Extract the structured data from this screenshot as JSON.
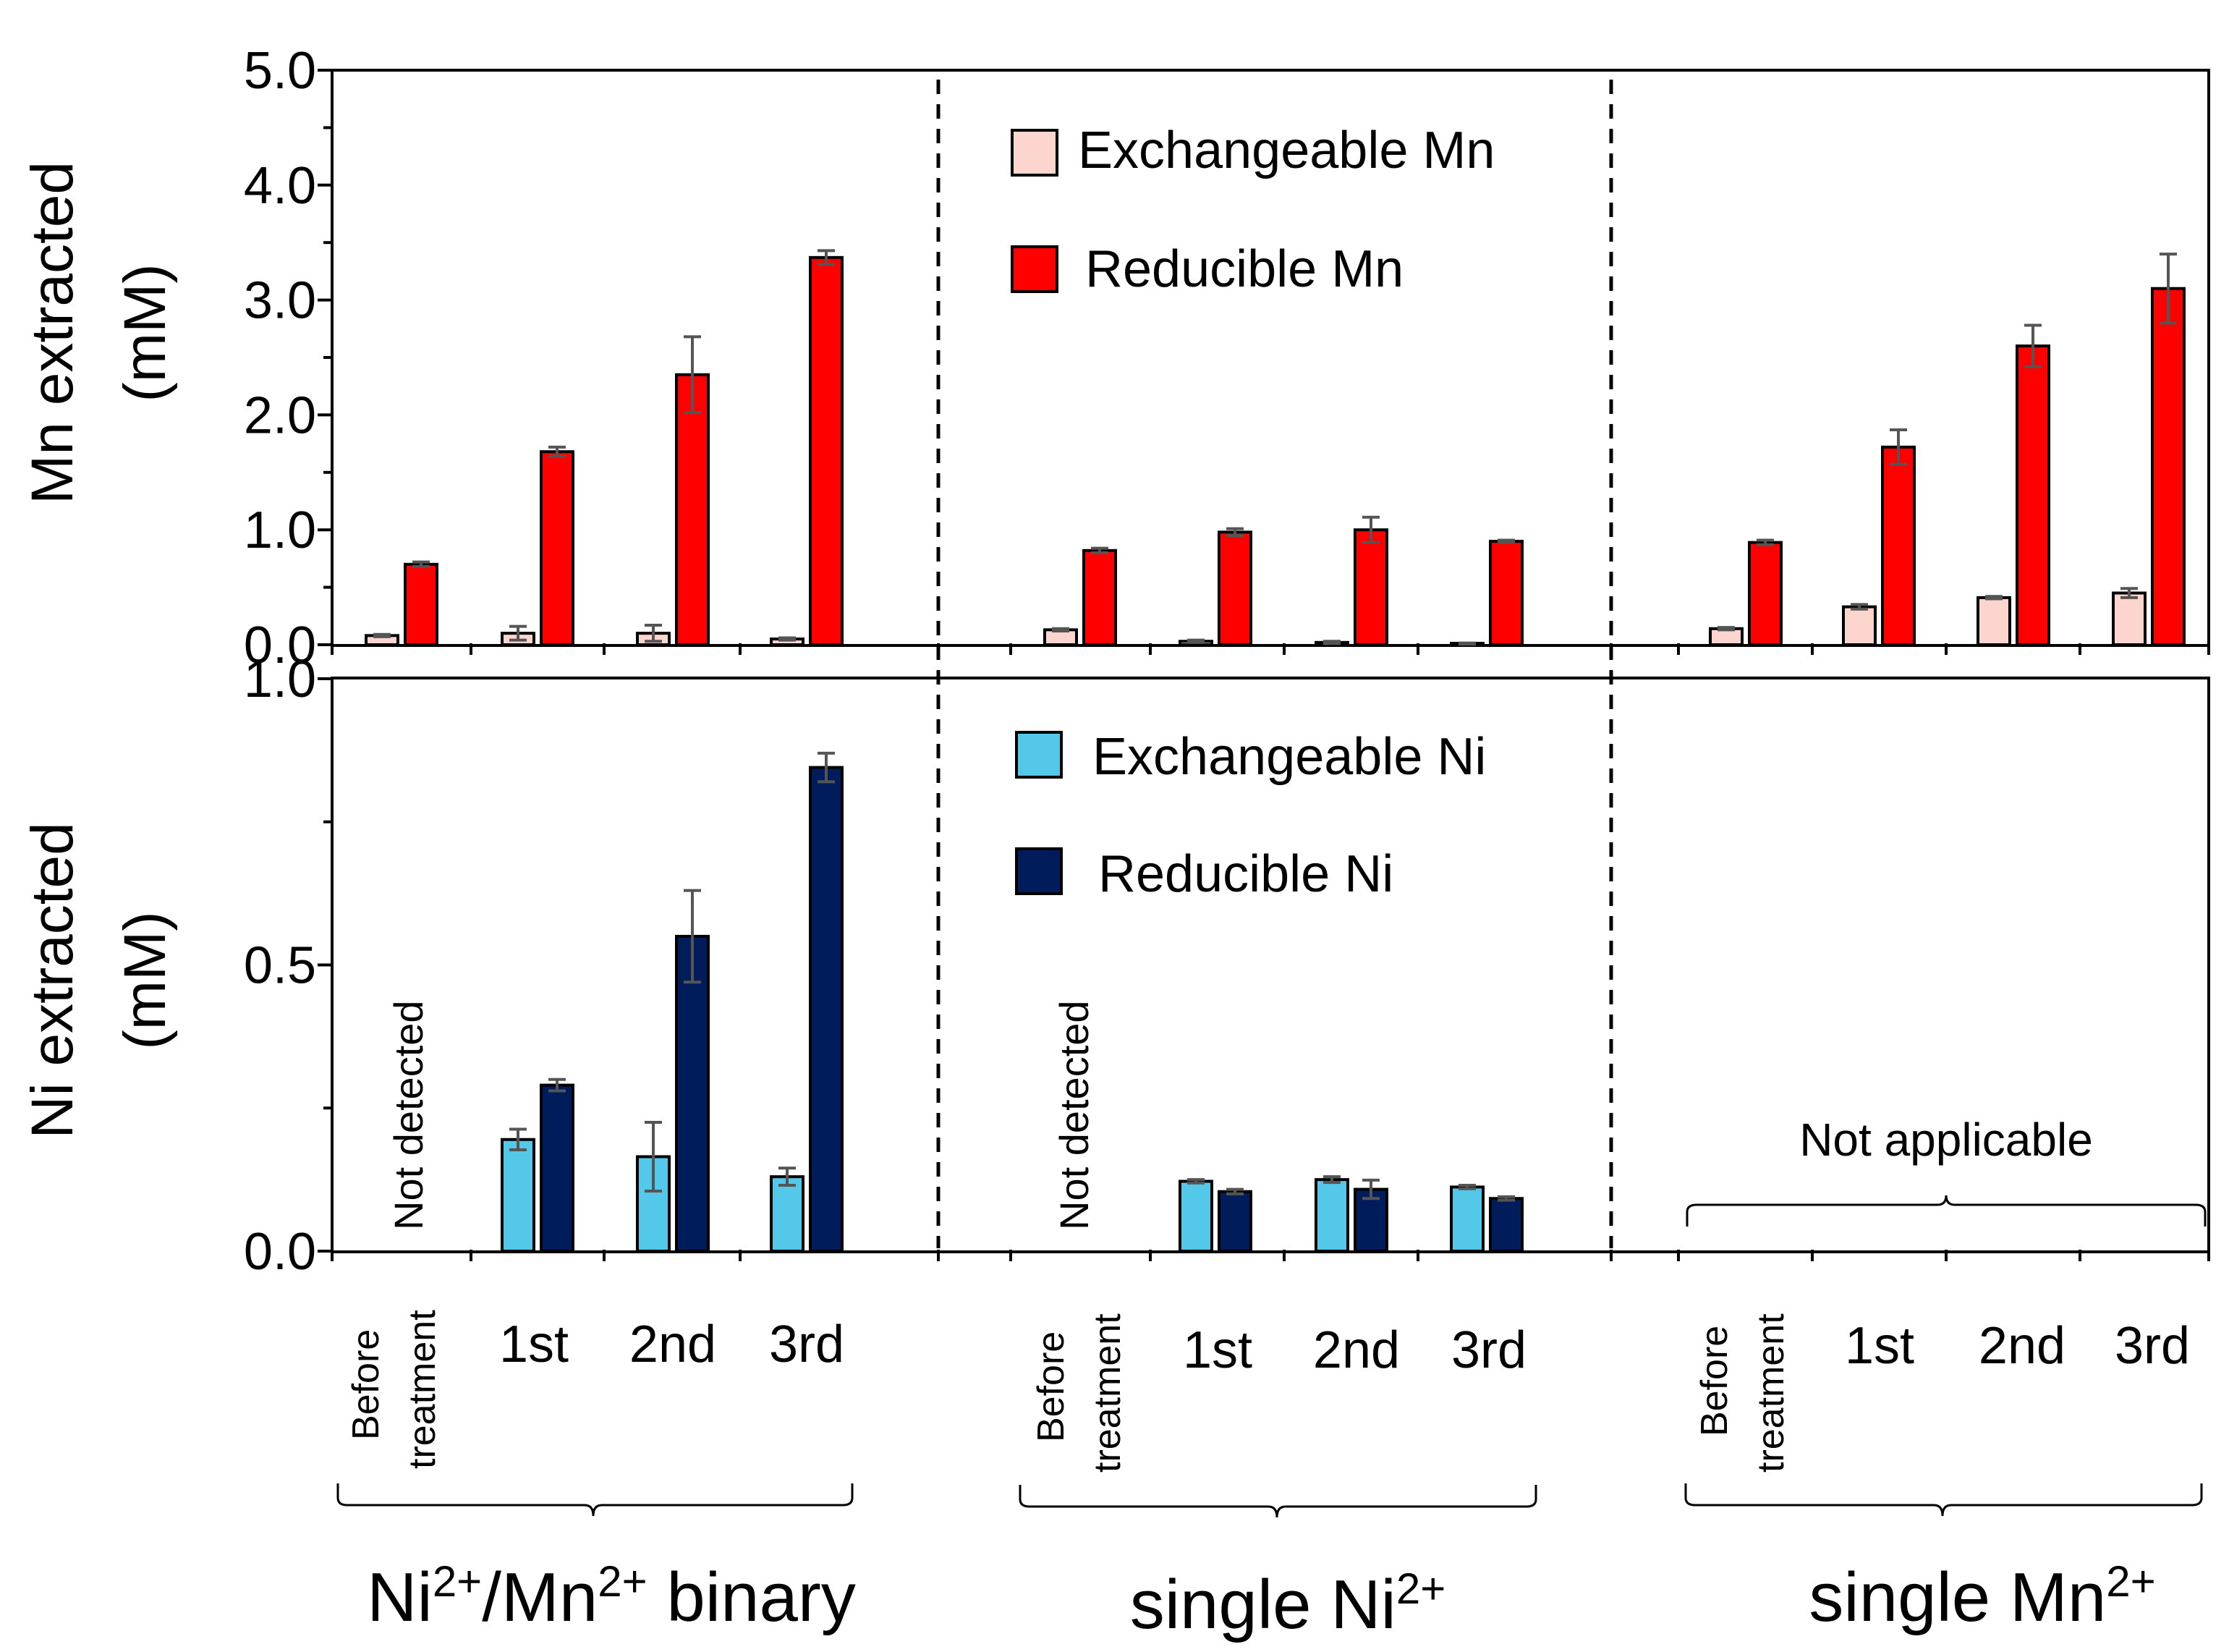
{
  "chart_data": [
    {
      "type": "bar",
      "panel": "top",
      "ylabel": [
        "Mn extracted",
        "(mM)"
      ],
      "ylim": [
        0,
        5
      ],
      "yticks": [
        "0.0",
        "1.0",
        "2.0",
        "3.0",
        "4.0",
        "5.0"
      ],
      "legend": [
        {
          "name": "Exchangeable Mn",
          "color": "#FDD5CF"
        },
        {
          "name": "Reducible Mn",
          "color": "#FF0000"
        }
      ],
      "groups": [
        {
          "name": "Ni2+/Mn2+ binary",
          "exchangeable": [
            0.08,
            0.1,
            0.1,
            0.05
          ],
          "exchangeable_err": [
            0.01,
            0.06,
            0.07,
            0.01
          ],
          "reducible": [
            0.7,
            1.68,
            2.35,
            3.37
          ],
          "reducible_err": [
            0.02,
            0.04,
            0.33,
            0.06
          ]
        },
        {
          "name": "single Ni2+",
          "exchangeable": [
            0.13,
            0.03,
            0.02,
            0.01
          ],
          "exchangeable_err": [
            0.01,
            0.01,
            0.01,
            0.005
          ],
          "reducible": [
            0.82,
            0.98,
            1.0,
            0.9
          ],
          "reducible_err": [
            0.02,
            0.03,
            0.11,
            0.01
          ]
        },
        {
          "name": "single Mn2+",
          "exchangeable": [
            0.14,
            0.33,
            0.41,
            0.45
          ],
          "exchangeable_err": [
            0.01,
            0.02,
            0.01,
            0.04
          ],
          "reducible": [
            0.89,
            1.72,
            2.6,
            3.1
          ],
          "reducible_err": [
            0.02,
            0.15,
            0.18,
            0.3
          ]
        }
      ]
    },
    {
      "type": "bar",
      "panel": "bottom",
      "ylabel": [
        "Ni extracted",
        "(mM)"
      ],
      "ylim": [
        0,
        1
      ],
      "yticks": [
        "0.0",
        "0.5",
        "1.0"
      ],
      "legend": [
        {
          "name": "Exchangeable Ni",
          "color": "#54C8E8"
        },
        {
          "name": "Reducible Ni",
          "color": "#001C5B"
        }
      ],
      "groups": [
        {
          "name": "Ni2+/Mn2+ binary",
          "exchangeable": [
            null,
            0.195,
            0.165,
            0.13
          ],
          "exchangeable_err": [
            null,
            0.018,
            0.06,
            0.015
          ],
          "reducible": [
            null,
            0.29,
            0.55,
            0.845
          ],
          "reducible_err": [
            null,
            0.01,
            0.08,
            0.025
          ]
        },
        {
          "name": "single Ni2+",
          "exchangeable": [
            null,
            0.122,
            0.125,
            0.112
          ],
          "exchangeable_err": [
            null,
            0.003,
            0.005,
            0.003
          ],
          "reducible": [
            null,
            0.104,
            0.108,
            0.092
          ],
          "reducible_err": [
            null,
            0.004,
            0.016,
            0.003
          ]
        },
        {
          "name": "single Mn2+",
          "exchangeable": [
            null,
            null,
            null,
            null
          ],
          "exchangeable_err": [
            null,
            null,
            null,
            null
          ],
          "reducible": [
            null,
            null,
            null,
            null
          ],
          "reducible_err": [
            null,
            null,
            null,
            null
          ]
        }
      ],
      "annotations": {
        "not_detected": "Not detected",
        "not_applicable": "Not applicable"
      }
    }
  ],
  "xaxis": {
    "before_line1": "Before",
    "before_line2": "treatment",
    "cycles": [
      "1st",
      "2nd",
      "3rd"
    ]
  },
  "group_labels": [
    {
      "base": "Ni",
      "sup": "2+",
      "middle": "/Mn",
      "sup2": "2+",
      "tail": " binary"
    },
    {
      "base": "single Ni",
      "sup": "2+"
    },
    {
      "base": "single Mn",
      "sup": "2+"
    }
  ],
  "colors": {
    "exch_mn": "#FDD5CF",
    "red_mn": "#FF0000",
    "exch_ni": "#54C8E8",
    "red_ni": "#001C5B"
  }
}
